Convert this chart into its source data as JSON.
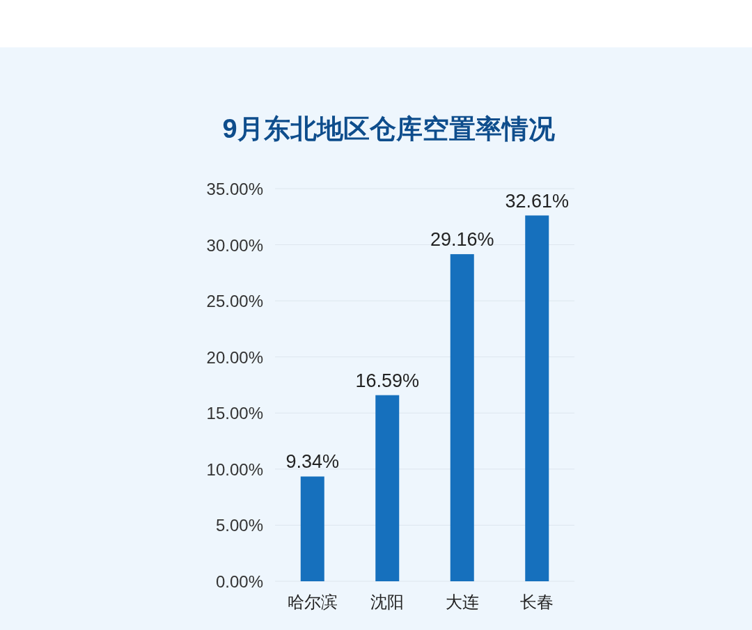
{
  "chart_data": {
    "type": "bar",
    "title": "9月东北地区仓库空置率情况",
    "categories": [
      "哈尔滨",
      "沈阳",
      "大连",
      "长春"
    ],
    "values": [
      9.34,
      16.59,
      29.16,
      32.61
    ],
    "value_labels": [
      "9.34%",
      "16.59%",
      "29.16%",
      "32.61%"
    ],
    "color": "#1670bd",
    "ylim": [
      0,
      35
    ],
    "yticks": [
      {
        "value": 0,
        "label": "0.00%"
      },
      {
        "value": 5,
        "label": "5.00%"
      },
      {
        "value": 10,
        "label": "10.00%"
      },
      {
        "value": 15,
        "label": "15.00%"
      },
      {
        "value": 20,
        "label": "20.00%"
      },
      {
        "value": 25,
        "label": "25.00%"
      },
      {
        "value": 30,
        "label": "30.00%"
      },
      {
        "value": 35,
        "label": "35.00%"
      }
    ],
    "grid": "y"
  }
}
